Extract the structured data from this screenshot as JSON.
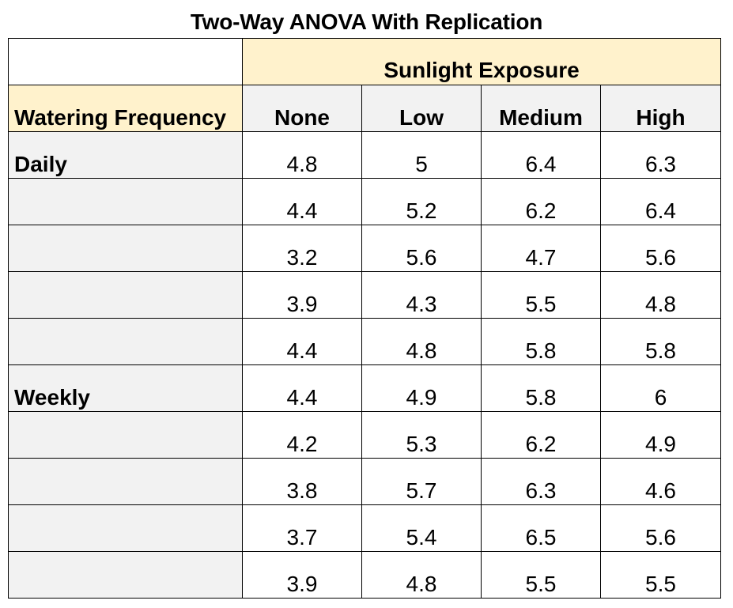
{
  "title": "Two-Way ANOVA With Replication",
  "table": {
    "column_group_header": "Sunlight Exposure",
    "row_header": "Watering Frequency",
    "columns": [
      "None",
      "Low",
      "Medium",
      "High"
    ],
    "rows": [
      {
        "group": "Daily",
        "values": [
          "4.8",
          "5",
          "6.4",
          "6.3"
        ]
      },
      {
        "group": "",
        "values": [
          "4.4",
          "5.2",
          "6.2",
          "6.4"
        ]
      },
      {
        "group": "",
        "values": [
          "3.2",
          "5.6",
          "4.7",
          "5.6"
        ]
      },
      {
        "group": "",
        "values": [
          "3.9",
          "4.3",
          "5.5",
          "4.8"
        ]
      },
      {
        "group": "",
        "values": [
          "4.4",
          "4.8",
          "5.8",
          "5.8"
        ]
      },
      {
        "group": "Weekly",
        "values": [
          "4.4",
          "4.9",
          "5.8",
          "6"
        ]
      },
      {
        "group": "",
        "values": [
          "4.2",
          "5.3",
          "6.2",
          "4.9"
        ]
      },
      {
        "group": "",
        "values": [
          "3.8",
          "5.7",
          "6.3",
          "4.6"
        ]
      },
      {
        "group": "",
        "values": [
          "3.7",
          "5.4",
          "6.5",
          "5.6"
        ]
      },
      {
        "group": "",
        "values": [
          "3.9",
          "4.8",
          "5.5",
          "5.5"
        ]
      }
    ]
  },
  "colors": {
    "header_yellow": "#fff2cc",
    "header_gray": "#f2f2f2",
    "border": "#000000"
  }
}
